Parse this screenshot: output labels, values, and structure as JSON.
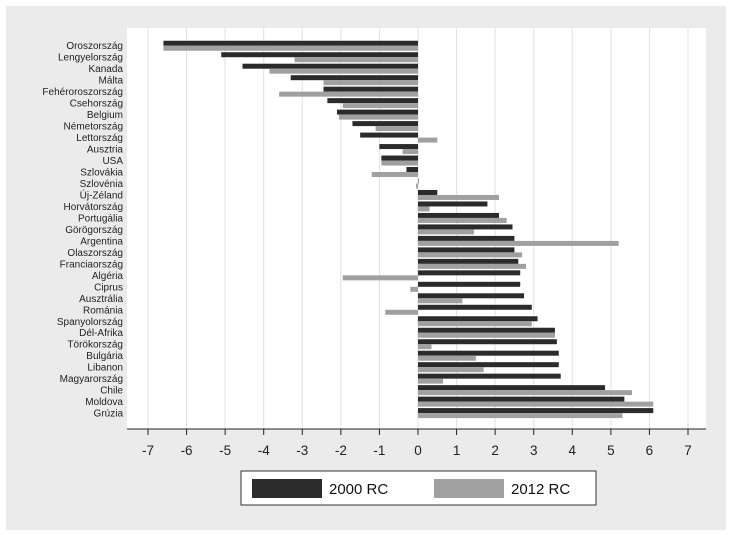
{
  "colors": {
    "series_2000": "#2b2b2b",
    "series_2012": "#a0a0a0",
    "background": "#ebebeb",
    "plot": "#ffffff"
  },
  "chart_data": {
    "type": "bar",
    "orientation": "horizontal",
    "categories": [
      "Oroszország",
      "Lengyelország",
      "Kanada",
      "Málta",
      "Fehéroroszország",
      "Csehország",
      "Belgium",
      "Németország",
      "Lettország",
      "Ausztria",
      "USA",
      "Szlovákia",
      "Szlovénia",
      "Új-Zéland",
      "Horvátország",
      "Portugália",
      "Görögország",
      "Argentina",
      "Olaszország",
      "Franciaország",
      "Algéria",
      "Ciprus",
      "Ausztrália",
      "Románia",
      "Spanyolország",
      "Dél-Afrika",
      "Törökország",
      "Bulgária",
      "Libanon",
      "Magyarország",
      "Chile",
      "Moldova",
      "Grúzia"
    ],
    "series": [
      {
        "name": "2000 RC",
        "values": [
          -6.6,
          -5.1,
          -4.55,
          -3.3,
          -2.45,
          -2.35,
          -2.1,
          -1.7,
          -1.5,
          -1.0,
          -0.95,
          -0.3,
          0,
          0.5,
          1.8,
          2.1,
          2.45,
          2.5,
          2.5,
          2.6,
          2.65,
          2.65,
          2.75,
          2.95,
          3.1,
          3.55,
          3.6,
          3.65,
          3.65,
          3.7,
          4.85,
          5.35,
          6.1
        ]
      },
      {
        "name": "2012 RC",
        "values": [
          -6.6,
          -3.2,
          -3.85,
          -2.45,
          -3.6,
          -1.95,
          -2.05,
          -1.1,
          0.5,
          -0.4,
          -0.95,
          -1.2,
          -0.05,
          2.1,
          0.3,
          2.3,
          1.45,
          5.2,
          2.7,
          2.8,
          -1.95,
          -0.2,
          1.15,
          -0.85,
          2.95,
          3.55,
          0.35,
          1.5,
          1.7,
          0.65,
          5.55,
          6.1,
          5.3
        ]
      }
    ],
    "xlim": [
      -7,
      7
    ],
    "xticks": [
      "-7",
      "-6",
      "-5",
      "-4",
      "-3",
      "-2",
      "-1",
      "0",
      "1",
      "2",
      "3",
      "4",
      "5",
      "6",
      "7"
    ],
    "grid": true,
    "legend_position": "bottom"
  }
}
